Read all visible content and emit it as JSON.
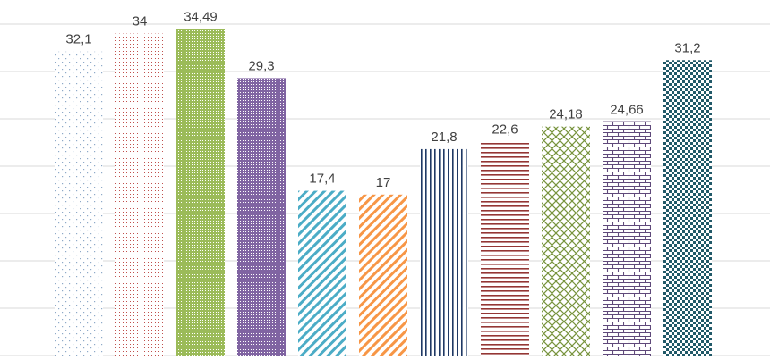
{
  "chart_data": {
    "type": "bar",
    "title": "",
    "xlabel": "",
    "ylabel": "",
    "ylim": [
      0,
      40
    ],
    "grid": true,
    "legend": "none",
    "values": [
      32.1,
      34,
      34.49,
      29.3,
      17.4,
      17,
      21.8,
      22.6,
      24.18,
      24.66,
      31.2
    ],
    "value_labels": [
      "32,1",
      "34",
      "34,49",
      "29,3",
      "17,4",
      "17",
      "21,8",
      "22,6",
      "24,18",
      "24,66",
      "31,2"
    ],
    "bar_styles": [
      {
        "pattern": "sparse-dots",
        "color": "#8ea9c8"
      },
      {
        "pattern": "fine-dots",
        "color": "#c0504d"
      },
      {
        "pattern": "dense-dots",
        "color": "#9bbb59"
      },
      {
        "pattern": "dense-dots",
        "color": "#8064a2"
      },
      {
        "pattern": "diagonal-stripes",
        "color": "#4bacc6"
      },
      {
        "pattern": "diagonal-stripes",
        "color": "#f79646"
      },
      {
        "pattern": "vertical-stripes",
        "color": "#1f3864"
      },
      {
        "pattern": "horizontal-stripes",
        "color": "#943634"
      },
      {
        "pattern": "diagonal-trellis",
        "color": "#77933c"
      },
      {
        "pattern": "brick",
        "color": "#5f497a"
      },
      {
        "pattern": "checkerboard",
        "color": "#215968"
      }
    ],
    "gridline_color": "#d9d9d9"
  }
}
